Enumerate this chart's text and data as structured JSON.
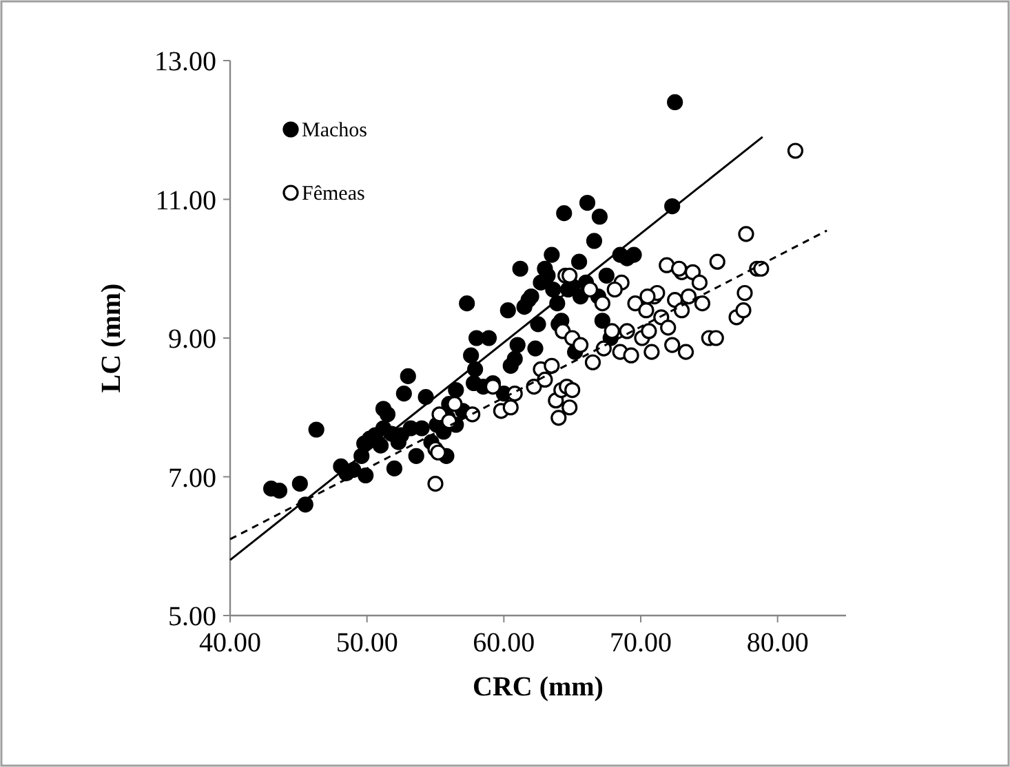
{
  "chart_data": {
    "type": "scatter",
    "xlabel": "CRC (mm)",
    "ylabel": "LC (mm)",
    "xlim": [
      40,
      85
    ],
    "xticks": [
      {
        "value": 40,
        "label": "40.00"
      },
      {
        "value": 50,
        "label": "50.00"
      },
      {
        "value": 60,
        "label": "60.00"
      },
      {
        "value": 70,
        "label": "70.00"
      },
      {
        "value": 80,
        "label": "80.00"
      }
    ],
    "ylim": [
      5,
      13
    ],
    "yticks": [
      {
        "value": 5,
        "label": "5.00"
      },
      {
        "value": 7,
        "label": "7.00"
      },
      {
        "value": 9,
        "label": "9.00"
      },
      {
        "value": 11,
        "label": "11.00"
      },
      {
        "value": 13,
        "label": "13.00"
      }
    ],
    "grid": false,
    "legend": "top left",
    "marker": "circle",
    "series": [
      {
        "name": "Machos",
        "color": "#000000",
        "x": [
          43.0,
          43.6,
          45.1,
          45.5,
          46.3,
          48.1,
          48.5,
          49.0,
          49.6,
          49.9,
          49.8,
          50.2,
          50.6,
          51.0,
          51.2,
          51.2,
          51.5,
          51.8,
          52.0,
          52.3,
          52.5,
          52.7,
          53.0,
          53.2,
          53.6,
          54.0,
          54.3,
          54.7,
          55.1,
          55.6,
          55.8,
          55.9,
          56.0,
          56.5,
          56.5,
          57.0,
          57.3,
          57.6,
          57.8,
          57.9,
          58.0,
          58.5,
          58.9,
          59.2,
          60.0,
          60.3,
          60.5,
          60.8,
          61.0,
          61.2,
          61.5,
          61.8,
          62.0,
          62.3,
          62.5,
          62.7,
          63.0,
          63.2,
          63.5,
          63.6,
          63.9,
          64.0,
          64.2,
          64.4,
          64.7,
          65.0,
          65.2,
          65.5,
          65.6,
          66.0,
          66.1,
          66.6,
          67.0,
          66.9,
          67.2,
          67.5,
          67.8,
          68.5,
          69.0,
          69.5,
          72.3,
          72.5
        ],
        "values": [
          6.83,
          6.8,
          6.9,
          6.6,
          7.68,
          7.15,
          7.05,
          7.1,
          7.3,
          7.02,
          7.48,
          7.55,
          7.6,
          7.45,
          7.7,
          7.98,
          7.9,
          7.62,
          7.12,
          7.5,
          7.6,
          8.2,
          8.45,
          7.7,
          7.3,
          7.7,
          8.15,
          7.5,
          7.75,
          7.65,
          7.3,
          7.85,
          8.05,
          7.75,
          8.25,
          7.95,
          9.5,
          8.75,
          8.35,
          8.55,
          9.0,
          8.3,
          9.0,
          8.35,
          8.2,
          9.4,
          8.6,
          8.7,
          8.9,
          10.0,
          9.45,
          9.55,
          9.6,
          8.85,
          9.2,
          9.8,
          10.0,
          9.9,
          10.2,
          9.7,
          9.5,
          9.2,
          9.25,
          10.8,
          9.7,
          9.75,
          8.8,
          10.1,
          9.6,
          9.8,
          10.95,
          10.4,
          10.75,
          9.6,
          9.25,
          9.9,
          9.0,
          10.2,
          10.15,
          10.2,
          10.9,
          12.4
        ]
      },
      {
        "name": "Fêmeas",
        "color": "#ffffff",
        "x": [
          55.0,
          55.0,
          55.2,
          55.3,
          56.0,
          56.4,
          57.7,
          59.8,
          59.2,
          60.5,
          60.8,
          62.2,
          62.7,
          63.0,
          63.5,
          63.8,
          64.0,
          64.2,
          64.6,
          64.8,
          65.0,
          64.3,
          64.5,
          65.0,
          65.6,
          66.5,
          67.3,
          67.2,
          67.9,
          68.5,
          68.6,
          69.0,
          69.3,
          69.6,
          70.1,
          70.4,
          70.6,
          70.8,
          71.0,
          71.2,
          71.5,
          71.9,
          72.0,
          72.3,
          72.5,
          73.0,
          73.0,
          73.3,
          73.5,
          73.8,
          74.3,
          74.5,
          75.0,
          75.5,
          75.6,
          77.0,
          77.5,
          77.6,
          77.7,
          78.5,
          78.8,
          81.3,
          72.8,
          70.5,
          68.1,
          66.3,
          64.8
        ],
        "values": [
          6.9,
          7.4,
          7.35,
          7.9,
          7.8,
          8.05,
          7.9,
          7.95,
          8.3,
          8.0,
          8.2,
          8.3,
          8.55,
          8.4,
          8.6,
          8.1,
          7.85,
          8.25,
          8.3,
          8.0,
          8.25,
          9.1,
          9.9,
          9.0,
          8.9,
          8.65,
          8.85,
          9.5,
          9.1,
          8.8,
          9.8,
          9.1,
          8.75,
          9.5,
          9.0,
          9.4,
          9.1,
          8.8,
          9.6,
          9.65,
          9.3,
          10.05,
          9.15,
          8.9,
          9.55,
          9.4,
          9.95,
          8.8,
          9.6,
          9.95,
          9.8,
          9.5,
          9.0,
          9.0,
          10.1,
          9.3,
          9.4,
          9.65,
          10.5,
          10.0,
          10.0,
          11.7,
          10.0,
          9.6,
          9.7,
          9.7,
          9.9
        ]
      },
      {
        "type": "line",
        "color": "#000000",
        "line_style": "solid",
        "marker": "none",
        "x": [
          40,
          78.9
        ],
        "values": [
          5.8,
          11.9
        ]
      },
      {
        "type": "line",
        "color": "#000000",
        "line_style": "dashed",
        "marker": "none",
        "x": [
          40,
          83.6
        ],
        "values": [
          6.1,
          10.55
        ]
      }
    ]
  }
}
